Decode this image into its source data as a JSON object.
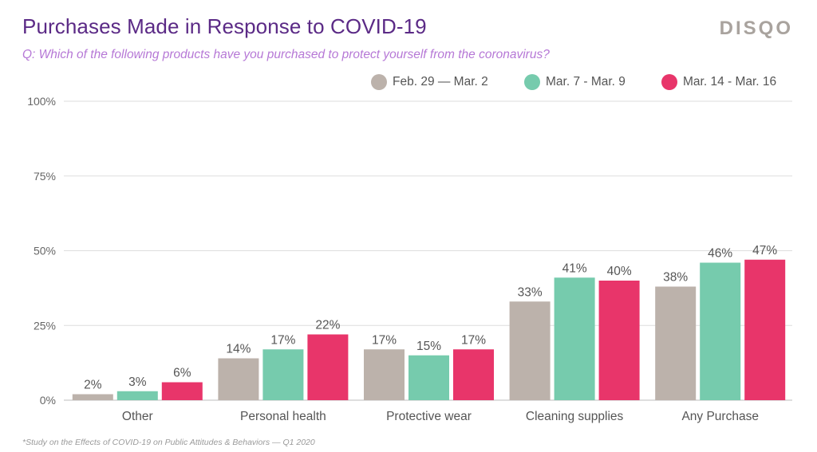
{
  "header": {
    "title": "Purchases Made in Response to COVID-19",
    "subtitle": "Q: Which of the following products have you purchased to protect yourself from the coronavirus?",
    "brand": "DISQO"
  },
  "footnote": "*Study on the Effects of COVID-19 on Public Attitudes & Behaviors — Q1 2020",
  "chart_data": {
    "type": "bar",
    "title": "Purchases Made in Response to COVID-19",
    "xlabel": "",
    "ylabel": "",
    "ylim": [
      0,
      100
    ],
    "yticks": [
      "0%",
      "25%",
      "50%",
      "75%",
      "100%"
    ],
    "categories": [
      "Other",
      "Personal health",
      "Protective wear",
      "Cleaning supplies",
      "Any Purchase"
    ],
    "series": [
      {
        "name": "Feb. 29 — Mar. 2",
        "color": "#bcb2ab",
        "values": [
          2,
          14,
          17,
          33,
          38
        ]
      },
      {
        "name": "Mar. 7 - Mar. 9",
        "color": "#76cbad",
        "values": [
          3,
          17,
          15,
          41,
          46
        ]
      },
      {
        "name": "Mar. 14 - Mar. 16",
        "color": "#e8356a",
        "values": [
          6,
          22,
          17,
          40,
          47
        ]
      }
    ],
    "value_format": "percent",
    "grid": true,
    "legend_position": "top-right"
  }
}
